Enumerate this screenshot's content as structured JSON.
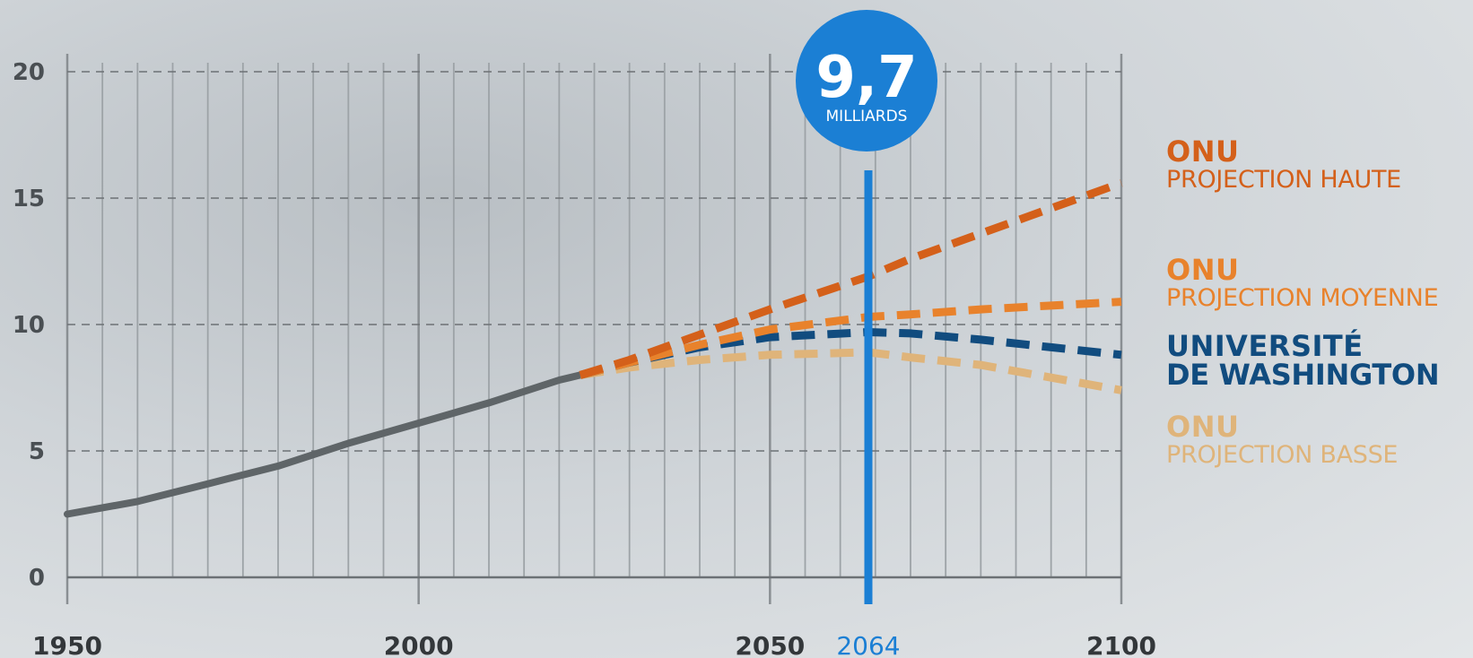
{
  "chart_data": {
    "type": "line",
    "xlim": [
      1950,
      2100
    ],
    "ylim": [
      0,
      20
    ],
    "x_ticks": [
      "1950",
      "2000",
      "2050",
      "2100"
    ],
    "y_ticks": [
      "0",
      "5",
      "10",
      "15",
      "20"
    ],
    "grid": true,
    "historical": {
      "color": "#5f6568",
      "points": [
        [
          1950,
          2.5
        ],
        [
          1960,
          3.0
        ],
        [
          1970,
          3.7
        ],
        [
          1980,
          4.4
        ],
        [
          1990,
          5.3
        ],
        [
          2000,
          6.1
        ],
        [
          2010,
          6.9
        ],
        [
          2020,
          7.8
        ],
        [
          2023,
          8.0
        ]
      ]
    },
    "series": [
      {
        "name": "ONU PROJECTION HAUTE",
        "color": "#d4601a",
        "points": [
          [
            2023,
            8.0
          ],
          [
            2030,
            8.6
          ],
          [
            2040,
            9.6
          ],
          [
            2050,
            10.6
          ],
          [
            2064,
            11.9
          ],
          [
            2070,
            12.6
          ],
          [
            2080,
            13.6
          ],
          [
            2090,
            14.6
          ],
          [
            2100,
            15.6
          ]
        ]
      },
      {
        "name": "ONU PROJECTION MOYENNE",
        "color": "#e8822c",
        "points": [
          [
            2023,
            8.0
          ],
          [
            2030,
            8.5
          ],
          [
            2040,
            9.2
          ],
          [
            2050,
            9.8
          ],
          [
            2064,
            10.3
          ],
          [
            2070,
            10.4
          ],
          [
            2080,
            10.6
          ],
          [
            2090,
            10.75
          ],
          [
            2100,
            10.9
          ]
        ]
      },
      {
        "name": "UNIVERSITÉ DE WASHINGTON",
        "color": "#114c7f",
        "points": [
          [
            2023,
            8.0
          ],
          [
            2030,
            8.5
          ],
          [
            2040,
            9.1
          ],
          [
            2050,
            9.5
          ],
          [
            2064,
            9.7
          ],
          [
            2070,
            9.65
          ],
          [
            2080,
            9.4
          ],
          [
            2090,
            9.1
          ],
          [
            2100,
            8.8
          ]
        ]
      },
      {
        "name": "ONU PROJECTION BASSE",
        "color": "#dfb47a",
        "points": [
          [
            2023,
            8.0
          ],
          [
            2030,
            8.3
          ],
          [
            2040,
            8.6
          ],
          [
            2050,
            8.8
          ],
          [
            2064,
            8.9
          ],
          [
            2070,
            8.7
          ],
          [
            2080,
            8.4
          ],
          [
            2090,
            7.9
          ],
          [
            2100,
            7.4
          ]
        ]
      }
    ],
    "highlight": {
      "year": 2064,
      "year_label": "2064",
      "value_label": "9,7",
      "unit_label": "MILLIARDS",
      "color": "#1b7fd4"
    },
    "legend": [
      {
        "line1": "ONU",
        "line2": "PROJECTION HAUTE",
        "color": "#d4601a",
        "bold2": false
      },
      {
        "line1": "ONU",
        "line2": "PROJECTION MOYENNE",
        "color": "#e8822c",
        "bold2": false
      },
      {
        "line1": "UNIVERSITÉ",
        "line2": "DE WASHINGTON",
        "color": "#114c7f",
        "bold2": true
      },
      {
        "line1": "ONU",
        "line2": "PROJECTION BASSE",
        "color": "#dfb47a",
        "bold2": false
      }
    ]
  }
}
